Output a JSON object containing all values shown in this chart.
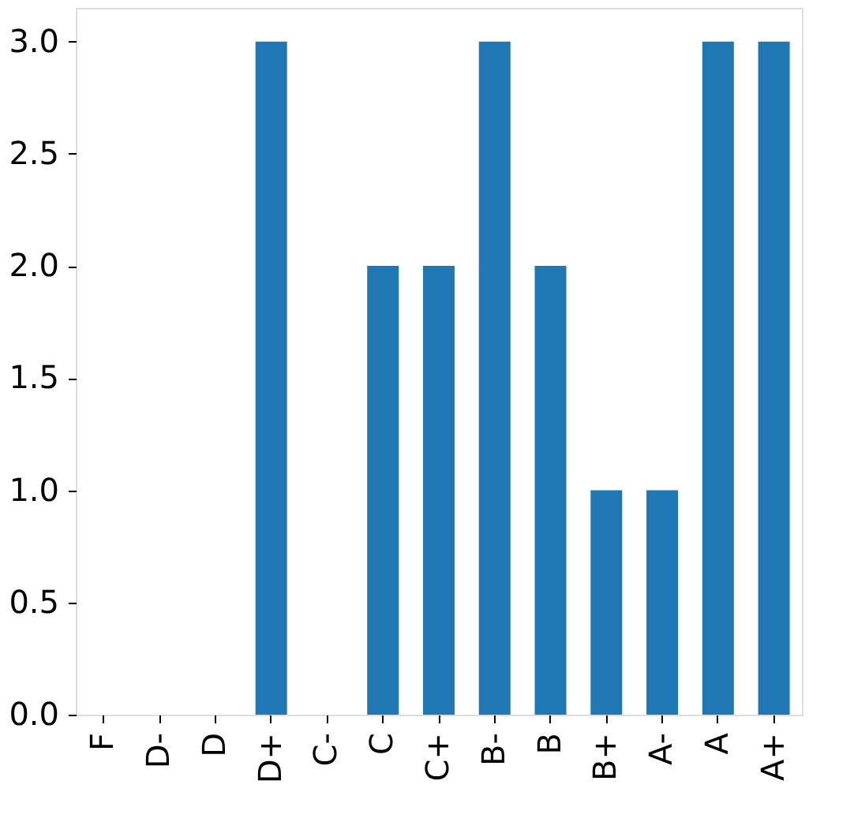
{
  "chart_data": {
    "type": "bar",
    "categories": [
      "F",
      "D-",
      "D",
      "D+",
      "C-",
      "C",
      "C+",
      "B-",
      "B",
      "B+",
      "A-",
      "A",
      "A+"
    ],
    "values": [
      0,
      0,
      0,
      3,
      0,
      2,
      2,
      3,
      2,
      1,
      1,
      3,
      3
    ],
    "color": "#1f77b4",
    "ylim": [
      0,
      3.15
    ],
    "yticks": [
      {
        "value": 0,
        "label": "0.0"
      },
      {
        "value": 0.5,
        "label": "0.5"
      },
      {
        "value": 1,
        "label": "1.0"
      },
      {
        "value": 1.5,
        "label": "1.5"
      },
      {
        "value": 2,
        "label": "2.0"
      },
      {
        "value": 2.5,
        "label": "2.5"
      },
      {
        "value": 3,
        "label": "3.0"
      }
    ],
    "grid": false
  }
}
